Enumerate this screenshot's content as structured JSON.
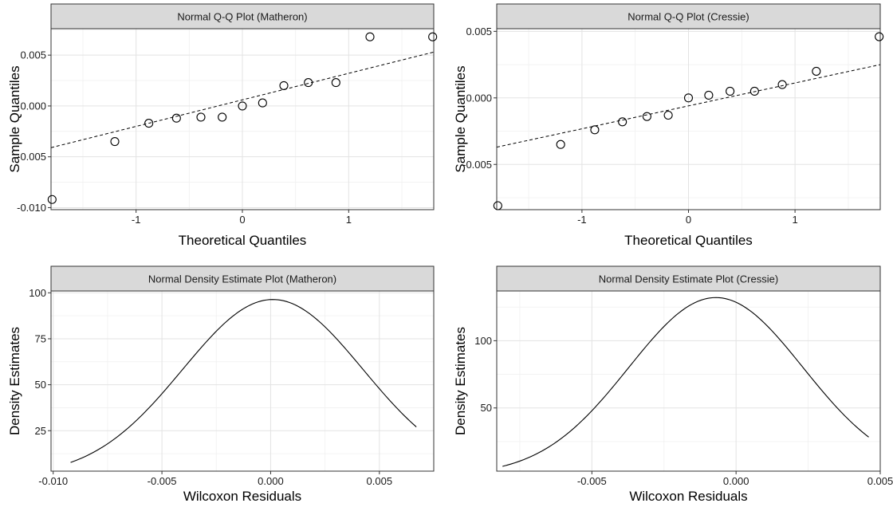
{
  "chart_data": [
    {
      "type": "scatter",
      "title": "Normal Q-Q Plot (Matheron)",
      "xlabel": "Theoretical Quantiles",
      "ylabel": "Sample Quantiles",
      "xlim": [
        -1.8,
        1.8
      ],
      "ylim": [
        -0.0102,
        0.0076
      ],
      "xticks": [
        -1,
        0,
        1
      ],
      "xtick_labels": [
        "-1",
        "0",
        "1"
      ],
      "yticks": [
        -0.01,
        -0.005,
        0.0,
        0.005
      ],
      "ytick_labels": [
        "-0.010",
        "-0.005",
        "0.000",
        "0.005"
      ],
      "grid": true,
      "points": [
        {
          "x": -1.79,
          "y": -0.0092
        },
        {
          "x": -1.2,
          "y": -0.0035
        },
        {
          "x": -0.88,
          "y": -0.0017
        },
        {
          "x": -0.62,
          "y": -0.0012
        },
        {
          "x": -0.39,
          "y": -0.0011
        },
        {
          "x": -0.19,
          "y": -0.0011
        },
        {
          "x": 0.0,
          "y": 0.0
        },
        {
          "x": 0.19,
          "y": 0.0003
        },
        {
          "x": 0.39,
          "y": 0.002
        },
        {
          "x": 0.62,
          "y": 0.0023
        },
        {
          "x": 0.88,
          "y": 0.0023
        },
        {
          "x": 1.2,
          "y": 0.0068
        },
        {
          "x": 1.79,
          "y": 0.0068
        }
      ],
      "reference_line": {
        "style": "dashed",
        "x": [
          -1.8,
          1.8
        ],
        "y": [
          -0.0041,
          0.0053
        ]
      }
    },
    {
      "type": "scatter",
      "title": "Normal Q-Q Plot (Cressie)",
      "xlabel": "Theoretical Quantiles",
      "ylabel": "Sample Quantiles",
      "xlim": [
        -1.8,
        1.8
      ],
      "ylim": [
        -0.0084,
        0.0052
      ],
      "xticks": [
        -1,
        0,
        1
      ],
      "xtick_labels": [
        "-1",
        "0",
        "1"
      ],
      "yticks": [
        -0.005,
        0.0,
        0.005
      ],
      "ytick_labels": [
        "-0.005",
        "0.000",
        "0.005"
      ],
      "grid": true,
      "points": [
        {
          "x": -1.79,
          "y": -0.0081
        },
        {
          "x": -1.2,
          "y": -0.0035
        },
        {
          "x": -0.88,
          "y": -0.0024
        },
        {
          "x": -0.62,
          "y": -0.0018
        },
        {
          "x": -0.39,
          "y": -0.0014
        },
        {
          "x": -0.19,
          "y": -0.0013
        },
        {
          "x": 0.0,
          "y": 0.0
        },
        {
          "x": 0.19,
          "y": 0.0002
        },
        {
          "x": 0.39,
          "y": 0.0005
        },
        {
          "x": 0.62,
          "y": 0.0005
        },
        {
          "x": 0.88,
          "y": 0.001
        },
        {
          "x": 1.2,
          "y": 0.002
        },
        {
          "x": 1.79,
          "y": 0.0046
        }
      ],
      "reference_line": {
        "style": "dashed",
        "x": [
          -1.8,
          1.8
        ],
        "y": [
          -0.0037,
          0.0025
        ]
      }
    },
    {
      "type": "line",
      "title": "Normal Density Estimate Plot (Matheron)",
      "xlabel": "Wilcoxon Residuals",
      "ylabel": "Density Estimates",
      "xlim": [
        -0.0101,
        0.0075
      ],
      "ylim": [
        3,
        101
      ],
      "xticks": [
        -0.01,
        -0.005,
        0.0,
        0.005
      ],
      "xtick_labels": [
        "-0.010",
        "-0.005",
        "0.000",
        "0.005"
      ],
      "yticks": [
        25,
        50,
        75,
        100
      ],
      "ytick_labels": [
        "25",
        "50",
        "75",
        "100"
      ],
      "grid": true,
      "curve": {
        "mean": 0.0001,
        "sd": 0.00414,
        "x_start": -0.0092,
        "x_end": 0.0067
      }
    },
    {
      "type": "line",
      "title": "Normal Density Estimate Plot (Cressie)",
      "xlabel": "Wilcoxon Residuals",
      "ylabel": "Density Estimates",
      "xlim": [
        -0.0083,
        0.005
      ],
      "ylim": [
        3,
        137
      ],
      "xticks": [
        -0.005,
        0.0,
        0.005
      ],
      "xtick_labels": [
        "-0.005",
        "0.000",
        "0.005"
      ],
      "yticks": [
        50,
        100
      ],
      "ytick_labels": [
        "50",
        "100"
      ],
      "grid": true,
      "curve": {
        "mean": -0.0007,
        "sd": 0.00302,
        "x_start": -0.0081,
        "x_end": 0.0046
      }
    }
  ]
}
